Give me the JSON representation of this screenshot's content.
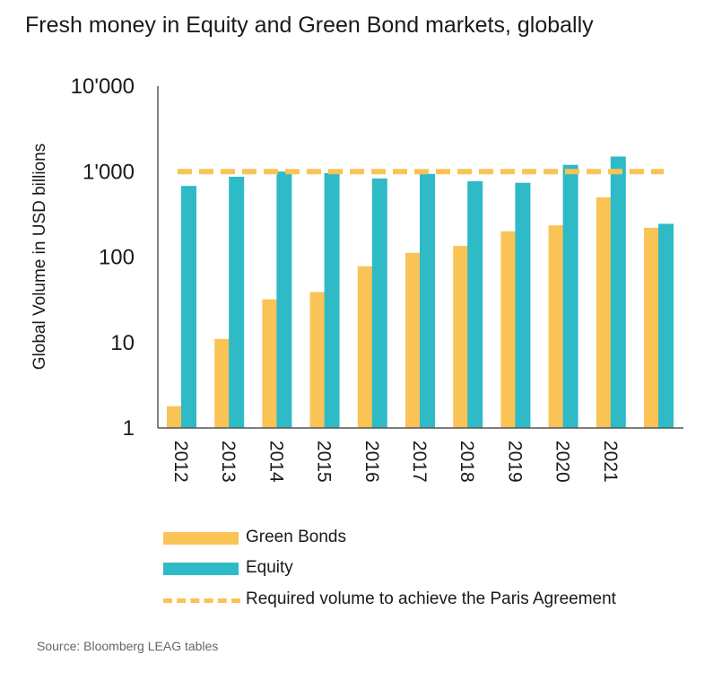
{
  "title": "Fresh money in Equity and Green Bond markets, globally",
  "source": "Source: Bloomberg LEAG tables",
  "colors": {
    "green_bonds": "#F9C356",
    "equity": "#2EBAC6",
    "target": "#F9C356",
    "axis": "#555555"
  },
  "legend": {
    "green_bonds": "Green Bonds",
    "equity": "Equity",
    "target": "Required volume to achieve the Paris Agreement"
  },
  "chart_data": {
    "type": "bar",
    "title": "Fresh money in Equity and Green Bond markets, globally",
    "ylabel": "Global Volume in USD billions",
    "xlabel": "",
    "yscale": "log",
    "ylim": [
      1,
      10000
    ],
    "yticks": [
      1,
      10,
      100,
      1000,
      10000
    ],
    "ytick_labels": [
      "1",
      "10",
      "100",
      "1'000",
      "10'000"
    ],
    "categories": [
      "2012",
      "2013",
      "2014",
      "2015",
      "2016",
      "2017",
      "2018",
      "2019",
      "2020",
      "2021",
      ""
    ],
    "series": [
      {
        "name": "Green Bonds",
        "values": [
          1.8,
          11,
          32,
          39,
          78,
          112,
          135,
          200,
          235,
          500,
          220
        ]
      },
      {
        "name": "Equity",
        "values": [
          680,
          870,
          1000,
          960,
          830,
          940,
          770,
          740,
          1200,
          1500,
          245
        ]
      }
    ],
    "reference_line": {
      "name": "Required volume to achieve the Paris Agreement",
      "value": 1000,
      "style": "dashed"
    },
    "legend_position": "bottom",
    "grid": false
  }
}
